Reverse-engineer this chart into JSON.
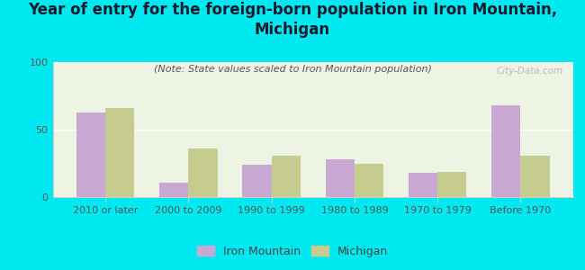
{
  "title": "Year of entry for the foreign-born population in Iron Mountain,\nMichigan",
  "subtitle": "(Note: State values scaled to Iron Mountain population)",
  "categories": [
    "2010 or later",
    "2000 to 2009",
    "1990 to 1999",
    "1980 to 1989",
    "1970 to 1979",
    "Before 1970"
  ],
  "iron_mountain": [
    63,
    11,
    24,
    28,
    18,
    68
  ],
  "michigan": [
    66,
    36,
    31,
    25,
    19,
    31
  ],
  "bar_color_im": "#c9a8d4",
  "bar_color_mi": "#c5cc8e",
  "background_outer": "#00e8f0",
  "background_plot": "#eef4e4",
  "ylim": [
    0,
    100
  ],
  "yticks": [
    0,
    50,
    100
  ],
  "watermark": "City-Data.com",
  "legend_im": "Iron Mountain",
  "legend_mi": "Michigan",
  "title_fontsize": 12,
  "subtitle_fontsize": 8,
  "tick_fontsize": 8,
  "legend_fontsize": 9
}
